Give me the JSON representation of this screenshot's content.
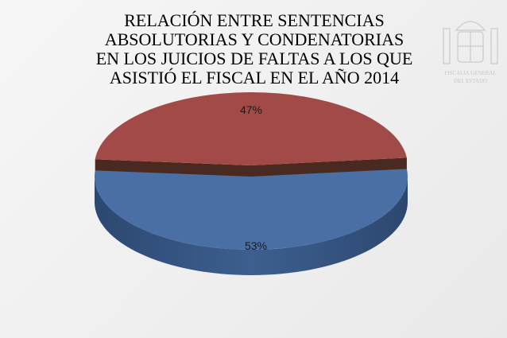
{
  "chart_data": {
    "type": "pie",
    "style": "3d-exploded",
    "title": "RELACIÓN ENTRE SENTENCIAS\nABSOLUTORIAS Y CONDENATORIAS\nEN LOS JUICIOS DE FALTAS A LOS QUE\nASISTIÓ EL FISCAL EN EL AÑO 2014",
    "slices": [
      {
        "value": 53,
        "label": "53%",
        "color": "#4a6fa5"
      },
      {
        "value": 47,
        "label": "47%",
        "color": "#a24a47"
      }
    ],
    "legend": "none"
  },
  "logo": {
    "text": "FISCALÍA GENERAL DEL ESTADO",
    "icon": "coat-of-arms-icon"
  }
}
